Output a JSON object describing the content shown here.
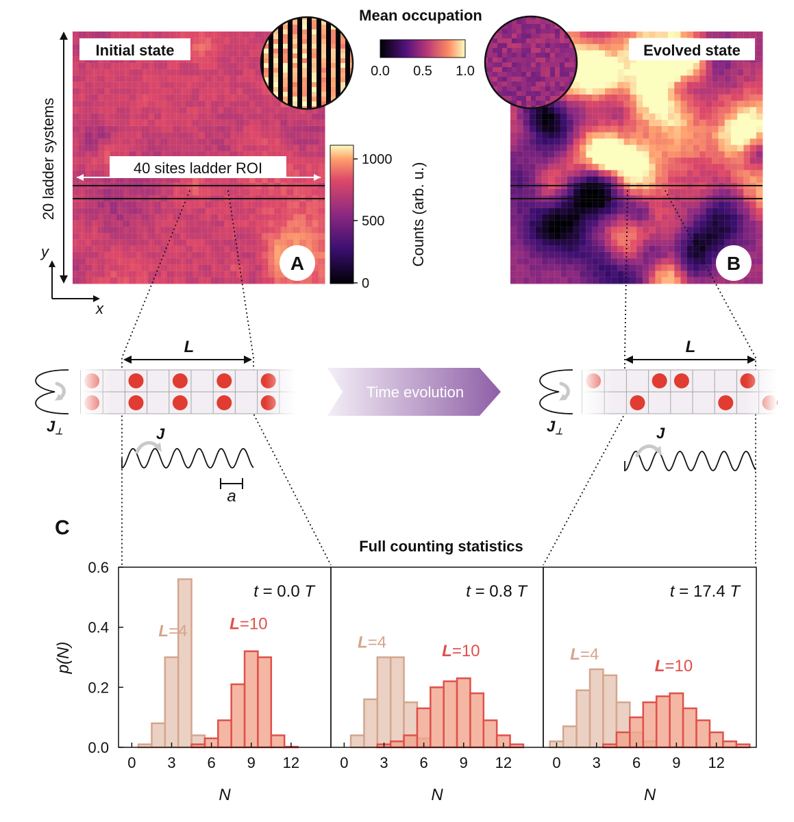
{
  "panel_a": {
    "tag": "A",
    "label": "Initial state",
    "side_label": "20 ladder systems",
    "roi_label": "40 sites ladder ROI"
  },
  "panel_b": {
    "tag": "B",
    "label": "Evolved state"
  },
  "axes_glyph": {
    "x": "x",
    "y": "y"
  },
  "inset_colorbar": {
    "title": "Mean occupation",
    "ticks": [
      "0.0",
      "0.5",
      "1.0"
    ]
  },
  "counts_colorbar": {
    "label": "Counts (arb. u.)",
    "ticks": [
      "1000",
      "500",
      "0"
    ]
  },
  "schematic": {
    "length_label": "L",
    "rung_label": "J",
    "rung_subscript": "⊥",
    "leg_label": "J",
    "spacing_label": "a",
    "arrow_text": "Time evolution"
  },
  "panel_c": {
    "tag": "C",
    "title": "Full counting statistics"
  },
  "colors": {
    "l4": "#e8c9b8",
    "l4_edge": "#d4a58e",
    "l10": "#f0a58c",
    "l10_edge": "#e0504b",
    "arrow": "#9b6fae"
  },
  "chart_data": [
    {
      "type": "bar",
      "title": "t = 0.0 T",
      "xlabel": "N",
      "ylabel": "p(N)",
      "xlim": [
        -1,
        15
      ],
      "ylim": [
        0,
        0.6
      ],
      "xticks": [
        "0",
        "3",
        "6",
        "9",
        "12"
      ],
      "yticks": [
        "0.0",
        "0.2",
        "0.4",
        "0.6"
      ],
      "x": [
        0,
        1,
        2,
        3,
        4,
        5,
        6,
        7,
        8,
        9,
        10,
        11,
        12,
        13,
        14
      ],
      "series": [
        {
          "name": "L=4",
          "values": [
            0,
            0.01,
            0.08,
            0.3,
            0.56,
            0.04,
            0,
            0,
            0,
            0,
            0,
            0,
            0,
            0,
            0
          ]
        },
        {
          "name": "L=10",
          "values": [
            0,
            0,
            0,
            0,
            0,
            0.01,
            0.03,
            0.09,
            0.21,
            0.32,
            0.3,
            0.04,
            0.002,
            0,
            0
          ]
        }
      ],
      "annotations": [
        "L=4",
        "L=10"
      ]
    },
    {
      "type": "bar",
      "title": "t = 0.8 T",
      "xlabel": "N",
      "ylabel": "",
      "xlim": [
        -1,
        15
      ],
      "ylim": [
        0,
        0.6
      ],
      "xticks": [
        "0",
        "3",
        "6",
        "9",
        "12"
      ],
      "yticks": [],
      "x": [
        0,
        1,
        2,
        3,
        4,
        5,
        6,
        7,
        8,
        9,
        10,
        11,
        12,
        13,
        14
      ],
      "series": [
        {
          "name": "L=4",
          "values": [
            0,
            0.04,
            0.16,
            0.3,
            0.3,
            0.15,
            0.03,
            0,
            0,
            0,
            0,
            0,
            0,
            0,
            0
          ]
        },
        {
          "name": "L=10",
          "values": [
            0,
            0,
            0,
            0.01,
            0.02,
            0.04,
            0.13,
            0.2,
            0.22,
            0.23,
            0.18,
            0.09,
            0.04,
            0.01,
            0
          ]
        }
      ],
      "annotations": [
        "L=4",
        "L=10"
      ]
    },
    {
      "type": "bar",
      "title": "t = 17.4 T",
      "xlabel": "N",
      "ylabel": "",
      "xlim": [
        -1,
        15
      ],
      "ylim": [
        0,
        0.6
      ],
      "xticks": [
        "0",
        "3",
        "6",
        "9",
        "12"
      ],
      "yticks": [],
      "x": [
        0,
        1,
        2,
        3,
        4,
        5,
        6,
        7,
        8,
        9,
        10,
        11,
        12,
        13,
        14
      ],
      "series": [
        {
          "name": "L=4",
          "values": [
            0.02,
            0.07,
            0.19,
            0.26,
            0.24,
            0.15,
            0.05,
            0.02,
            0,
            0,
            0,
            0,
            0,
            0,
            0
          ]
        },
        {
          "name": "L=10",
          "values": [
            0,
            0,
            0,
            0,
            0.01,
            0.05,
            0.1,
            0.15,
            0.17,
            0.18,
            0.13,
            0.09,
            0.05,
            0.02,
            0.01
          ]
        }
      ],
      "annotations": [
        "L=4",
        "L=10"
      ]
    }
  ]
}
